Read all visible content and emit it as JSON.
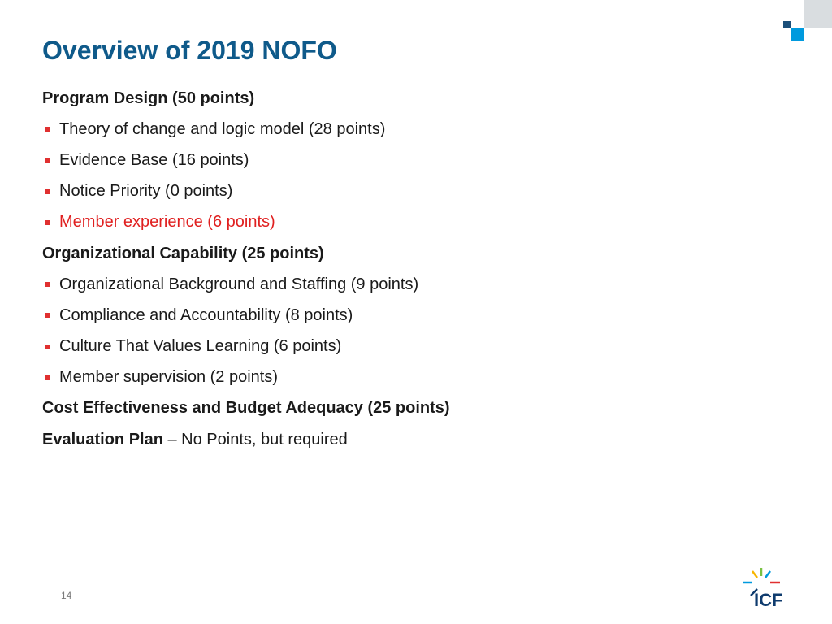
{
  "slide": {
    "title": "Overview of 2019 NOFO",
    "page_number": "14",
    "logo_text": "ICF"
  },
  "items": [
    {
      "type": "heading",
      "text": "Program Design (50 points)"
    },
    {
      "type": "bullet",
      "text": "Theory of change and logic model (28 points)"
    },
    {
      "type": "bullet",
      "text": "Evidence Base (16 points)"
    },
    {
      "type": "bullet",
      "text": "Notice Priority (0 points)"
    },
    {
      "type": "bullet",
      "text": "Member experience (6 points)",
      "color": "#e02020"
    },
    {
      "type": "heading",
      "text": "Organizational Capability (25 points)"
    },
    {
      "type": "bullet",
      "text": "Organizational Background and Staffing (9 points)"
    },
    {
      "type": "bullet",
      "text": "Compliance and Accountability (8 points)"
    },
    {
      "type": "bullet",
      "text": "Culture That Values Learning (6 points)"
    },
    {
      "type": "bullet",
      "text": "Member supervision (2 points)"
    },
    {
      "type": "heading",
      "text": "Cost Effectiveness and Budget Adequacy (25 points)"
    },
    {
      "type": "heading-mixed",
      "text_bold": "Evaluation Plan",
      "text_normal": " – No Points, but required"
    }
  ],
  "colors": {
    "title": "#0f5a8a",
    "bullet": "#e03030",
    "highlight": "#e02020",
    "logo": "#0f3b6e"
  }
}
